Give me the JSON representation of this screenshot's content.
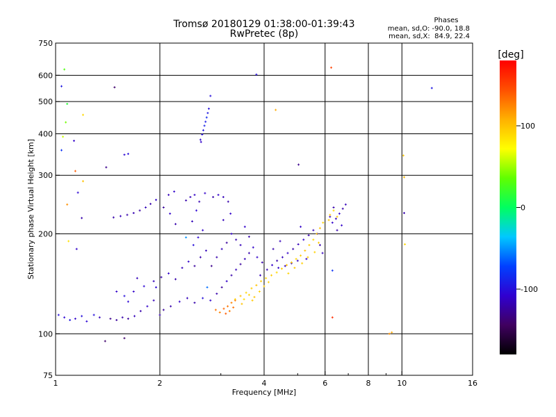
{
  "chart_data": {
    "type": "scatter",
    "title": "Tromsø 20180129 01:38:00-01:39:43",
    "subtitle": "RwPretec (8p)",
    "stats": {
      "heading": "Phases",
      "line1": "mean, sd,O: -90.0, 18.8",
      "line2": "mean, sd,X:  84.9, 22.4"
    },
    "xlabel": "Frequency [MHz]",
    "ylabel": "Stationary phase Virtual Height [km]",
    "x_scale": "log",
    "y_scale": "log",
    "xlim": [
      1,
      16
    ],
    "ylim": [
      75,
      750
    ],
    "x_ticks": [
      {
        "value": 1,
        "label": "1"
      },
      {
        "value": 2,
        "label": "2"
      },
      {
        "value": 4,
        "label": "4"
      },
      {
        "value": 6,
        "label": "6"
      },
      {
        "value": 8,
        "label": "8"
      },
      {
        "value": 10,
        "label": "10"
      },
      {
        "value": 16,
        "label": "16"
      }
    ],
    "x_minor": [
      3,
      5,
      7,
      9
    ],
    "x_grid": [
      2,
      4,
      6,
      8,
      10
    ],
    "y_ticks": [
      {
        "value": 75,
        "label": "75"
      },
      {
        "value": 100,
        "label": "100"
      },
      {
        "value": 200,
        "label": "200"
      },
      {
        "value": 300,
        "label": "300"
      },
      {
        "value": 400,
        "label": "400"
      },
      {
        "value": 500,
        "label": "500"
      },
      {
        "value": 600,
        "label": "600"
      },
      {
        "value": 750,
        "label": "750"
      }
    ],
    "y_grid": [
      100,
      200,
      300,
      400,
      500,
      600
    ],
    "colorbar": {
      "label": "[deg]",
      "min": -180,
      "max": 180,
      "ticks": [
        {
          "value": 100,
          "label": "100"
        },
        {
          "value": 0,
          "label": "0"
        },
        {
          "value": -100,
          "label": "-100"
        }
      ]
    },
    "point_note": "points are [frequency MHz, virtual height km, phase deg]",
    "points": [
      [
        1.04,
        556,
        -95
      ],
      [
        1.06,
        625,
        30
      ],
      [
        1.08,
        492,
        15
      ],
      [
        1.07,
        433,
        40
      ],
      [
        1.05,
        392,
        60
      ],
      [
        1.04,
        357,
        -80
      ],
      [
        1.13,
        381,
        -110
      ],
      [
        1.2,
        456,
        90
      ],
      [
        1.14,
        309,
        140
      ],
      [
        1.16,
        266,
        -105
      ],
      [
        1.19,
        223,
        -120
      ],
      [
        1.2,
        288,
        100
      ],
      [
        1.08,
        245,
        120
      ],
      [
        1.09,
        190,
        85
      ],
      [
        1.15,
        180,
        -110
      ],
      [
        1.4,
        317,
        -130
      ],
      [
        1.58,
        346,
        -105
      ],
      [
        1.62,
        348,
        -100
      ],
      [
        1.48,
        552,
        -140
      ],
      [
        1.39,
        95,
        -140
      ],
      [
        1.58,
        97,
        -140
      ],
      [
        3.8,
        603,
        -100
      ],
      [
        4.32,
        472,
        110
      ],
      [
        5.03,
        323,
        -130
      ],
      [
        6.25,
        633,
        150
      ],
      [
        6.3,
        155,
        -80
      ],
      [
        6.3,
        112,
        160
      ],
      [
        10.1,
        344,
        100
      ],
      [
        10.15,
        296,
        105
      ],
      [
        10.2,
        186,
        90
      ],
      [
        10.15,
        231,
        -120
      ],
      [
        12.2,
        549,
        -95
      ],
      [
        9.2,
        100,
        120
      ],
      [
        9.35,
        101,
        110
      ],
      [
        2.62,
        384,
        -105
      ],
      [
        2.65,
        398,
        -100
      ],
      [
        2.67,
        410,
        -95
      ],
      [
        2.69,
        423,
        -90
      ],
      [
        2.71,
        435,
        -92
      ],
      [
        2.73,
        448,
        -85
      ],
      [
        2.75,
        462,
        -95
      ],
      [
        2.77,
        476,
        -100
      ],
      [
        2.8,
        520,
        -100
      ],
      [
        2.63,
        378,
        -110
      ],
      [
        1.47,
        224,
        -120
      ],
      [
        1.54,
        226,
        -115
      ],
      [
        1.61,
        228,
        -120
      ],
      [
        1.68,
        231,
        -118
      ],
      [
        1.75,
        235,
        -122
      ],
      [
        1.82,
        240,
        -115
      ],
      [
        1.88,
        246,
        -120
      ],
      [
        1.95,
        253,
        -110
      ],
      [
        2.05,
        240,
        -125
      ],
      [
        2.12,
        262,
        -115
      ],
      [
        2.2,
        268,
        -110
      ],
      [
        2.38,
        252,
        -120
      ],
      [
        2.45,
        258,
        -115
      ],
      [
        2.52,
        262,
        -112
      ],
      [
        2.6,
        250,
        -118
      ],
      [
        2.7,
        265,
        -110
      ],
      [
        2.85,
        258,
        -120
      ],
      [
        2.95,
        262,
        -110
      ],
      [
        3.05,
        258,
        -115
      ],
      [
        3.15,
        250,
        -120
      ],
      [
        1.02,
        114,
        -100
      ],
      [
        1.06,
        112,
        -105
      ],
      [
        1.1,
        110,
        -95
      ],
      [
        1.14,
        111,
        -110
      ],
      [
        1.19,
        113,
        -100
      ],
      [
        1.23,
        109,
        -105
      ],
      [
        1.29,
        114,
        -100
      ],
      [
        1.34,
        112,
        -115
      ],
      [
        1.44,
        111,
        -130
      ],
      [
        1.5,
        110,
        -125
      ],
      [
        1.56,
        112,
        -120
      ],
      [
        1.62,
        111,
        -125
      ],
      [
        1.69,
        113,
        -115
      ],
      [
        1.76,
        117,
        -120
      ],
      [
        1.84,
        121,
        -110
      ],
      [
        1.92,
        126,
        -115
      ],
      [
        2.0,
        114,
        -120
      ],
      [
        2.05,
        118,
        -125
      ],
      [
        2.15,
        121,
        -120
      ],
      [
        2.28,
        125,
        -110
      ],
      [
        2.4,
        128,
        -115
      ],
      [
        2.52,
        124,
        -120
      ],
      [
        2.66,
        128,
        -100
      ],
      [
        2.8,
        126,
        -110
      ],
      [
        1.58,
        130,
        -100
      ],
      [
        1.68,
        134,
        -110
      ],
      [
        1.8,
        139,
        -105
      ],
      [
        1.92,
        144,
        -115
      ],
      [
        2.02,
        148,
        -120
      ],
      [
        2.12,
        152,
        -110
      ],
      [
        2.22,
        146,
        -120
      ],
      [
        2.32,
        158,
        -115
      ],
      [
        2.42,
        165,
        -110
      ],
      [
        2.52,
        160,
        -125
      ],
      [
        2.62,
        170,
        -120
      ],
      [
        2.72,
        178,
        -115
      ],
      [
        2.5,
        185,
        -100
      ],
      [
        2.58,
        195,
        -105
      ],
      [
        2.66,
        205,
        -110
      ],
      [
        2.48,
        218,
        -115
      ],
      [
        2.55,
        235,
        -105
      ],
      [
        2.14,
        230,
        -110
      ],
      [
        2.22,
        214,
        -120
      ],
      [
        1.95,
        138,
        -105
      ],
      [
        1.72,
        147,
        -115
      ],
      [
        1.5,
        134,
        -110
      ],
      [
        1.62,
        125,
        -105
      ],
      [
        2.92,
        132,
        -120
      ],
      [
        3.02,
        138,
        -125
      ],
      [
        3.12,
        144,
        -110
      ],
      [
        3.22,
        150,
        -120
      ],
      [
        3.32,
        156,
        -115
      ],
      [
        3.42,
        162,
        -125
      ],
      [
        3.52,
        168,
        -115
      ],
      [
        3.62,
        175,
        -120
      ],
      [
        3.72,
        182,
        -110
      ],
      [
        2.82,
        160,
        -130
      ],
      [
        2.92,
        170,
        -120
      ],
      [
        3.02,
        180,
        -115
      ],
      [
        3.12,
        188,
        -125
      ],
      [
        3.22,
        200,
        -110
      ],
      [
        3.32,
        192,
        -120
      ],
      [
        3.42,
        185,
        -115
      ],
      [
        3.52,
        210,
        -110
      ],
      [
        3.62,
        196,
        -120
      ],
      [
        3.05,
        220,
        -115
      ],
      [
        3.2,
        230,
        -110
      ],
      [
        2.38,
        195,
        -50
      ],
      [
        2.74,
        138,
        -60
      ],
      [
        3.82,
        170,
        -110
      ],
      [
        3.95,
        164,
        -120
      ],
      [
        4.08,
        156,
        -115
      ],
      [
        4.22,
        161,
        -110
      ],
      [
        4.36,
        166,
        -120
      ],
      [
        4.52,
        170,
        -115
      ],
      [
        4.68,
        175,
        -110
      ],
      [
        4.85,
        180,
        -120
      ],
      [
        5.02,
        186,
        -115
      ],
      [
        5.2,
        192,
        -110
      ],
      [
        5.38,
        198,
        -120
      ],
      [
        5.55,
        205,
        -115
      ],
      [
        5.7,
        200,
        -110
      ],
      [
        5.8,
        185,
        -120
      ],
      [
        5.9,
        175,
        -115
      ],
      [
        4.4,
        158,
        -110
      ],
      [
        4.6,
        160,
        -115
      ],
      [
        4.8,
        163,
        -120
      ],
      [
        5.0,
        166,
        -115
      ],
      [
        5.3,
        168,
        -110
      ],
      [
        4.25,
        180,
        -120
      ],
      [
        4.45,
        190,
        -115
      ],
      [
        5.1,
        210,
        -110
      ],
      [
        3.9,
        150,
        -115
      ],
      [
        6.3,
        216,
        -110
      ],
      [
        6.45,
        222,
        -115
      ],
      [
        6.6,
        230,
        -110
      ],
      [
        6.75,
        238,
        -120
      ],
      [
        6.88,
        245,
        -115
      ],
      [
        6.5,
        205,
        -120
      ],
      [
        6.7,
        212,
        -110
      ],
      [
        6.2,
        225,
        -115
      ],
      [
        6.35,
        240,
        -120
      ],
      [
        2.9,
        118,
        130
      ],
      [
        2.98,
        116,
        125
      ],
      [
        3.06,
        119,
        135
      ],
      [
        3.14,
        121,
        130
      ],
      [
        3.22,
        124,
        125
      ],
      [
        3.3,
        126,
        130
      ],
      [
        3.1,
        115,
        140
      ],
      [
        3.18,
        117,
        128
      ],
      [
        3.26,
        120,
        132
      ],
      [
        3.3,
        127,
        95
      ],
      [
        3.42,
        130,
        100
      ],
      [
        3.55,
        133,
        90
      ],
      [
        3.68,
        137,
        95
      ],
      [
        3.8,
        140,
        100
      ],
      [
        3.92,
        144,
        95
      ],
      [
        4.05,
        147,
        90
      ],
      [
        3.5,
        127,
        88
      ],
      [
        3.62,
        131,
        92
      ],
      [
        3.75,
        129,
        98
      ],
      [
        3.88,
        134,
        94
      ],
      [
        4.0,
        139,
        96
      ],
      [
        4.12,
        143,
        93
      ],
      [
        3.45,
        123,
        100
      ],
      [
        3.7,
        126,
        97
      ],
      [
        4.2,
        150,
        95
      ],
      [
        4.35,
        153,
        90
      ],
      [
        4.5,
        157,
        95
      ],
      [
        4.65,
        161,
        100
      ],
      [
        4.8,
        164,
        95
      ],
      [
        4.95,
        168,
        90
      ],
      [
        5.1,
        172,
        95
      ],
      [
        5.25,
        178,
        100
      ],
      [
        5.4,
        185,
        95
      ],
      [
        5.55,
        192,
        90
      ],
      [
        5.68,
        200,
        95
      ],
      [
        5.8,
        208,
        100
      ],
      [
        5.92,
        216,
        95
      ],
      [
        4.7,
        152,
        92
      ],
      [
        4.9,
        158,
        96
      ],
      [
        5.15,
        163,
        94
      ],
      [
        5.35,
        170,
        98
      ],
      [
        5.6,
        176,
        93
      ],
      [
        5.75,
        188,
        96
      ],
      [
        6.2,
        228,
        95
      ],
      [
        6.35,
        235,
        90
      ],
      [
        6.5,
        225,
        100
      ],
      [
        6.15,
        220,
        98
      ]
    ]
  }
}
